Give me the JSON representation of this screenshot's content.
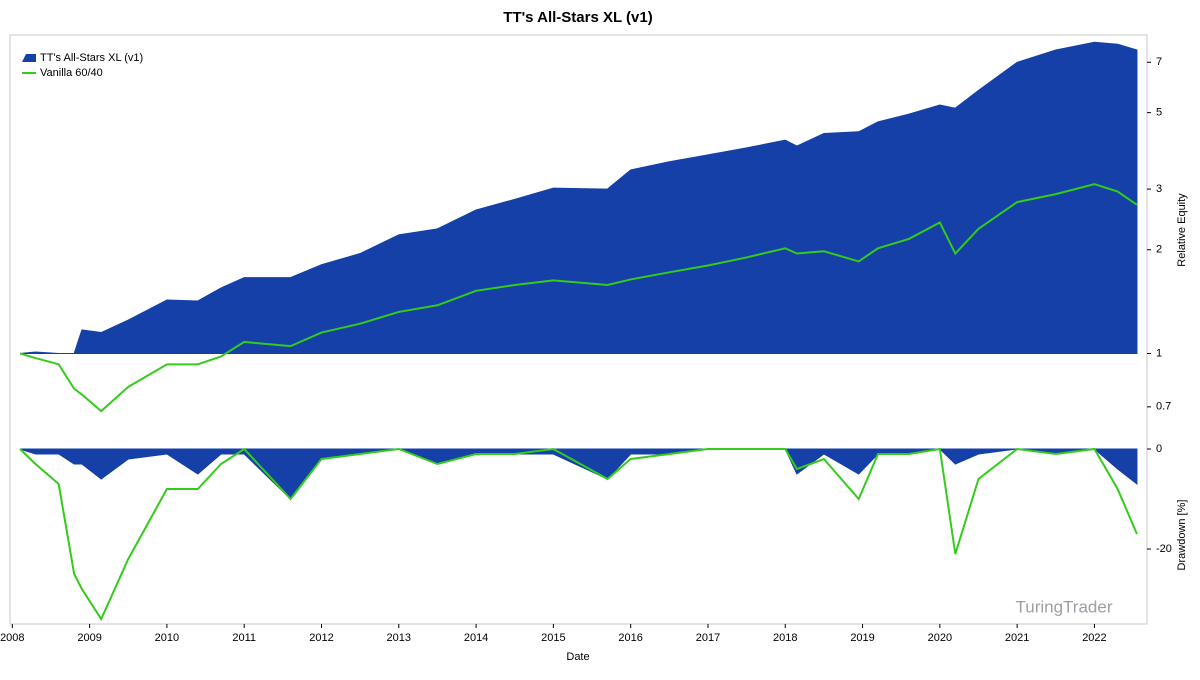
{
  "chart_data": [
    {
      "type": "line",
      "title": "TT's All-Stars XL (v1)",
      "y_label": "Relative Equity",
      "log_scale": true,
      "legend": "upper left",
      "xlim": [
        2007.97,
        2022.68
      ],
      "ylim": [
        0.62,
        8.4
      ],
      "yticks": [
        0.7,
        1,
        2,
        3,
        5,
        7
      ],
      "x": [
        2008.1,
        2008.3,
        2008.6,
        2008.8,
        2008.9,
        2009.15,
        2009.5,
        2010,
        2010.4,
        2010.7,
        2011,
        2011.6,
        2012,
        2012.5,
        2013,
        2013.5,
        2014,
        2014.5,
        2015,
        2015.7,
        2016,
        2016.5,
        2017,
        2017.5,
        2018,
        2018.15,
        2018.5,
        2018.95,
        2019.2,
        2019.6,
        2020,
        2020.2,
        2020.5,
        2021,
        2021.5,
        2022,
        2022.3,
        2022.55
      ],
      "series": [
        {
          "name": "TT's All-Stars XL (v1)",
          "type": "area",
          "color": "#1440a8",
          "values": [
            1.0,
            1.01,
            1.0,
            1.0,
            1.17,
            1.15,
            1.25,
            1.43,
            1.42,
            1.55,
            1.66,
            1.66,
            1.81,
            1.95,
            2.21,
            2.3,
            2.61,
            2.8,
            3.02,
            3.0,
            3.41,
            3.6,
            3.77,
            3.95,
            4.16,
            4.0,
            4.35,
            4.4,
            4.7,
            4.95,
            5.26,
            5.15,
            5.8,
            7.0,
            7.6,
            8.0,
            7.9,
            7.6
          ]
        },
        {
          "name": "Vanilla 60/40",
          "type": "line",
          "color": "#33cc1a",
          "values": [
            1.0,
            0.97,
            0.93,
            0.79,
            0.76,
            0.68,
            0.8,
            0.93,
            0.93,
            0.98,
            1.08,
            1.05,
            1.15,
            1.22,
            1.32,
            1.38,
            1.52,
            1.58,
            1.63,
            1.58,
            1.64,
            1.72,
            1.8,
            1.9,
            2.02,
            1.95,
            1.98,
            1.85,
            2.02,
            2.15,
            2.4,
            1.95,
            2.3,
            2.75,
            2.9,
            3.1,
            2.95,
            2.7
          ]
        }
      ]
    },
    {
      "type": "line",
      "x_label": "Date",
      "y_label": "Drawdown [%]",
      "xlim": [
        2007.97,
        2022.68
      ],
      "ylim": [
        -35,
        2
      ],
      "yticks": [
        0,
        -20
      ],
      "xticks": [
        2008,
        2009,
        2010,
        2011,
        2012,
        2013,
        2014,
        2015,
        2016,
        2017,
        2018,
        2019,
        2020,
        2021,
        2022
      ],
      "x": [
        2008.1,
        2008.3,
        2008.6,
        2008.8,
        2008.9,
        2009.15,
        2009.5,
        2010,
        2010.4,
        2010.7,
        2011,
        2011.6,
        2012,
        2012.5,
        2013,
        2013.5,
        2014,
        2014.5,
        2015,
        2015.7,
        2016,
        2016.5,
        2017,
        2017.5,
        2018,
        2018.15,
        2018.5,
        2018.95,
        2019.2,
        2019.6,
        2020,
        2020.2,
        2020.5,
        2021,
        2021.5,
        2022,
        2022.3,
        2022.55
      ],
      "series": [
        {
          "type": "area",
          "color": "#1440a8",
          "values": [
            0,
            -1,
            -1,
            -3,
            -3,
            -6,
            -2,
            -1,
            -5,
            -1,
            -1,
            -10,
            -2,
            -1,
            0,
            -3,
            -1,
            -1,
            -1,
            -6,
            -1,
            -1,
            0,
            0,
            0,
            -5,
            -1,
            -5,
            -1,
            -1,
            0,
            -3,
            -1,
            0,
            -1,
            0,
            -4,
            -7
          ]
        },
        {
          "type": "line",
          "color": "#33cc1a",
          "values": [
            0,
            -3,
            -7,
            -25,
            -28,
            -34,
            -22,
            -8,
            -8,
            -3,
            0,
            -10,
            -2,
            -1,
            0,
            -3,
            -1,
            -1,
            0,
            -6,
            -2,
            -1,
            0,
            0,
            0,
            -4,
            -2,
            -10,
            -1,
            -1,
            0,
            -21,
            -6,
            0,
            -1,
            0,
            -8,
            -17
          ]
        }
      ]
    }
  ],
  "watermark": "TuringTrader"
}
